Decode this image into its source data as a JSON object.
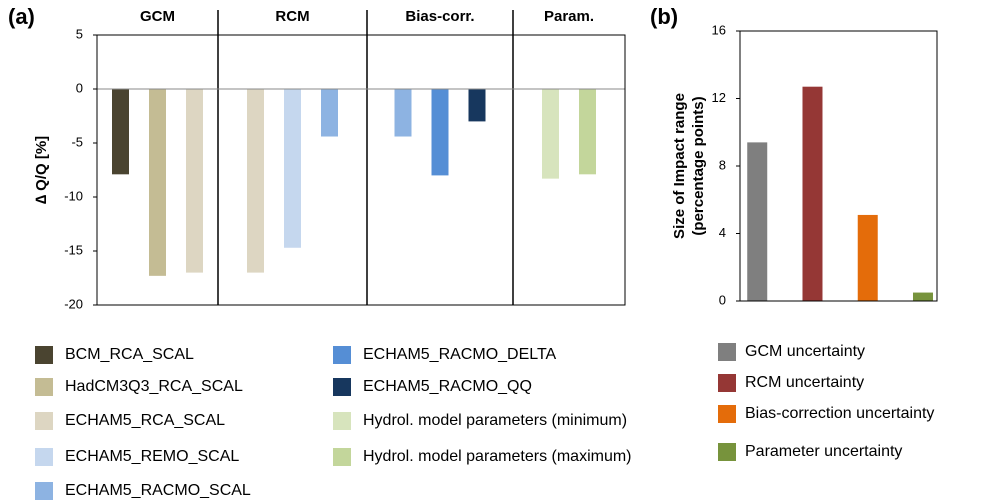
{
  "chart_data": [
    {
      "type": "bar",
      "panel_label": "(a)",
      "y_label": "∆ Q/Q [%]",
      "groups": [
        "GCM",
        "RCM",
        "Bias-corr.",
        "Param."
      ],
      "ylim": [
        -20,
        5
      ],
      "yticks": [
        -20,
        -15,
        -10,
        -5,
        0,
        5
      ],
      "series": [
        {
          "name": "BCM_RCA_SCAL",
          "color": "#4a4430",
          "values": [
            -7.9,
            null,
            null,
            null
          ]
        },
        {
          "name": "HadCM3Q3_RCA_SCAL",
          "color": "#c4bc94",
          "values": [
            -17.3,
            null,
            null,
            null
          ]
        },
        {
          "name": "ECHAM5_RCA_SCAL",
          "color": "#ddd6c2",
          "values": [
            -17.0,
            -17.0,
            null,
            null
          ]
        },
        {
          "name": "ECHAM5_REMO_SCAL",
          "color": "#c5d7ee",
          "values": [
            null,
            -14.7,
            null,
            null
          ]
        },
        {
          "name": "ECHAM5_RACMO_SCAL",
          "color": "#8db3e2",
          "values": [
            null,
            -4.4,
            -4.4,
            null
          ]
        },
        {
          "name": "ECHAM5_RACMO_DELTA",
          "color": "#558ed5",
          "values": [
            null,
            null,
            -8.0,
            null
          ]
        },
        {
          "name": "ECHAM5_RACMO_QQ",
          "color": "#17375e",
          "values": [
            null,
            null,
            -3.0,
            null
          ]
        },
        {
          "name": "Hydrol. model parameters (minimum)",
          "color": "#d7e4bd",
          "values": [
            null,
            null,
            null,
            -8.3
          ]
        },
        {
          "name": "Hydrol. model parameters (maximum)",
          "color": "#c3d69b",
          "values": [
            null,
            null,
            null,
            -7.9
          ]
        }
      ]
    },
    {
      "type": "bar",
      "panel_label": "(b)",
      "y_label": [
        "Size of Impact range",
        "(percentage points)"
      ],
      "categories": [
        "GCM uncertainty",
        "RCM uncertainty",
        "Bias-correction uncertainty",
        "Parameter uncertainty"
      ],
      "values": [
        9.4,
        12.7,
        5.1,
        0.5
      ],
      "colors": [
        "#7f7f7f",
        "#953735",
        "#e46c0a",
        "#77933c"
      ],
      "ylim": [
        0,
        16
      ],
      "yticks": [
        0,
        4,
        8,
        12,
        16
      ]
    }
  ]
}
